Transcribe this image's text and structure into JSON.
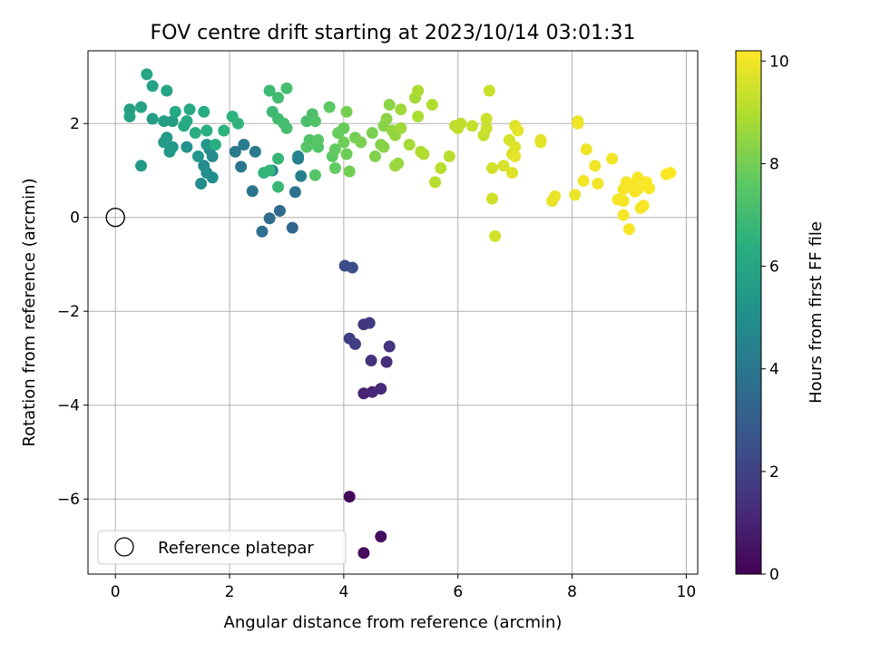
{
  "chart_data": {
    "type": "scatter",
    "title": "FOV centre drift starting at 2023/10/14 03:01:31",
    "xlabel": "Angular distance from reference (arcmin)",
    "ylabel": "Rotation from reference (arcmin)",
    "xlim": [
      -0.48,
      10.2
    ],
    "ylim": [
      -7.6,
      3.55
    ],
    "x_ticks": [
      0,
      2,
      4,
      6,
      8,
      10
    ],
    "y_ticks": [
      -6,
      -4,
      -2,
      0,
      2
    ],
    "grid": true,
    "legend": {
      "position": "bottom-left",
      "entries": [
        "Reference platepar"
      ]
    },
    "reference_point": {
      "x": 0,
      "y": 0,
      "label": "Reference platepar"
    },
    "colorbar": {
      "label": "Hours from first FF file",
      "colormap": "viridis",
      "range": [
        0,
        10.2
      ],
      "ticks": [
        0,
        2,
        4,
        6,
        8,
        10
      ]
    },
    "points": [
      [
        4.1,
        -5.95,
        0.2
      ],
      [
        4.35,
        -7.15,
        0.3
      ],
      [
        4.65,
        -6.8,
        0.4
      ],
      [
        4.35,
        -3.75,
        1.0
      ],
      [
        4.5,
        -3.72,
        1.1
      ],
      [
        4.65,
        -3.65,
        1.2
      ],
      [
        4.75,
        -3.08,
        1.3
      ],
      [
        4.48,
        -3.05,
        1.4
      ],
      [
        4.8,
        -2.75,
        1.5
      ],
      [
        4.35,
        -2.28,
        1.6
      ],
      [
        4.45,
        -2.25,
        1.7
      ],
      [
        4.2,
        -2.7,
        1.8
      ],
      [
        4.1,
        -2.58,
        1.9
      ],
      [
        4.02,
        -1.03,
        2.3
      ],
      [
        4.15,
        -1.07,
        2.4
      ],
      [
        3.1,
        -0.22,
        3.3
      ],
      [
        2.88,
        0.14,
        3.5
      ],
      [
        2.7,
        -0.02,
        3.6
      ],
      [
        2.57,
        -0.3,
        3.7
      ],
      [
        3.15,
        0.54,
        3.8
      ],
      [
        2.4,
        0.56,
        3.9
      ],
      [
        2.2,
        1.08,
        4.0
      ],
      [
        2.1,
        1.4,
        4.1
      ],
      [
        2.25,
        1.55,
        4.2
      ],
      [
        2.45,
        1.4,
        4.2
      ],
      [
        3.2,
        1.25,
        4.3
      ],
      [
        3.25,
        0.88,
        4.4
      ],
      [
        2.75,
        1.0,
        4.5
      ],
      [
        3.2,
        1.3,
        4.5
      ],
      [
        1.65,
        1.45,
        4.7
      ],
      [
        1.7,
        1.3,
        4.8
      ],
      [
        1.55,
        1.1,
        4.8
      ],
      [
        1.5,
        0.72,
        4.9
      ],
      [
        1.7,
        0.85,
        5.0
      ],
      [
        1.6,
        0.95,
        5.0
      ],
      [
        1.25,
        1.5,
        5.2
      ],
      [
        1.45,
        1.3,
        5.3
      ],
      [
        1.6,
        1.55,
        5.3
      ],
      [
        0.95,
        1.4,
        5.4
      ],
      [
        1.0,
        1.5,
        5.4
      ],
      [
        0.45,
        1.1,
        5.5
      ],
      [
        0.85,
        1.6,
        5.5
      ],
      [
        0.9,
        1.7,
        5.6
      ],
      [
        0.65,
        2.1,
        5.6
      ],
      [
        0.85,
        2.05,
        5.7
      ],
      [
        1.0,
        2.05,
        5.7
      ],
      [
        0.25,
        2.3,
        5.8
      ],
      [
        0.25,
        2.15,
        5.8
      ],
      [
        0.45,
        2.35,
        5.9
      ],
      [
        0.65,
        2.8,
        5.9
      ],
      [
        0.55,
        3.05,
        6.0
      ],
      [
        0.9,
        2.7,
        6.0
      ],
      [
        1.05,
        2.25,
        6.1
      ],
      [
        1.2,
        1.95,
        6.1
      ],
      [
        1.25,
        2.05,
        6.2
      ],
      [
        1.3,
        2.3,
        6.2
      ],
      [
        1.4,
        1.8,
        6.3
      ],
      [
        1.55,
        2.25,
        6.3
      ],
      [
        1.6,
        1.85,
        6.4
      ],
      [
        1.75,
        1.55,
        6.4
      ],
      [
        1.9,
        1.85,
        6.5
      ],
      [
        2.05,
        2.15,
        6.5
      ],
      [
        2.15,
        2.0,
        6.6
      ],
      [
        2.6,
        0.95,
        6.6
      ],
      [
        2.7,
        1.0,
        6.7
      ],
      [
        2.85,
        1.25,
        6.7
      ],
      [
        2.85,
        0.65,
        6.8
      ],
      [
        2.7,
        2.7,
        6.9
      ],
      [
        2.75,
        2.25,
        6.9
      ],
      [
        2.85,
        2.55,
        7.0
      ],
      [
        2.85,
        2.1,
        7.0
      ],
      [
        2.95,
        2.0,
        7.1
      ],
      [
        3.0,
        1.9,
        7.1
      ],
      [
        3.0,
        2.75,
        7.1
      ],
      [
        3.35,
        2.05,
        7.2
      ],
      [
        3.45,
        2.2,
        7.2
      ],
      [
        3.5,
        2.05,
        7.3
      ],
      [
        3.4,
        1.65,
        7.3
      ],
      [
        3.55,
        1.5,
        7.4
      ],
      [
        3.5,
        0.9,
        7.4
      ],
      [
        3.35,
        1.5,
        7.5
      ],
      [
        3.55,
        1.65,
        7.5
      ],
      [
        3.75,
        2.35,
        7.6
      ],
      [
        3.8,
        1.3,
        7.6
      ],
      [
        3.85,
        1.45,
        7.7
      ],
      [
        3.85,
        1.05,
        7.7
      ],
      [
        3.9,
        1.8,
        7.8
      ],
      [
        4.0,
        1.9,
        7.8
      ],
      [
        4.0,
        1.6,
        7.9
      ],
      [
        4.05,
        1.35,
        7.9
      ],
      [
        4.1,
        0.98,
        8.0
      ],
      [
        4.05,
        2.25,
        8.0
      ],
      [
        4.2,
        1.7,
        8.0
      ],
      [
        4.3,
        1.6,
        8.1
      ],
      [
        4.5,
        1.8,
        8.1
      ],
      [
        4.55,
        1.3,
        8.2
      ],
      [
        4.65,
        1.55,
        8.2
      ],
      [
        4.7,
        1.5,
        8.3
      ],
      [
        4.7,
        1.95,
        8.3
      ],
      [
        4.75,
        2.1,
        8.4
      ],
      [
        4.8,
        2.4,
        8.4
      ],
      [
        4.85,
        1.85,
        8.5
      ],
      [
        4.9,
        1.75,
        8.5
      ],
      [
        4.9,
        1.1,
        8.6
      ],
      [
        4.95,
        1.15,
        8.6
      ],
      [
        5.0,
        1.9,
        8.7
      ],
      [
        5.0,
        2.3,
        8.7
      ],
      [
        5.15,
        1.55,
        8.8
      ],
      [
        5.25,
        2.55,
        8.8
      ],
      [
        5.3,
        2.7,
        8.9
      ],
      [
        5.3,
        2.15,
        8.9
      ],
      [
        5.35,
        1.4,
        9.0
      ],
      [
        5.4,
        1.35,
        9.0
      ],
      [
        5.55,
        2.4,
        9.0
      ],
      [
        5.6,
        0.75,
        9.1
      ],
      [
        5.7,
        1.05,
        9.1
      ],
      [
        5.85,
        1.3,
        9.1
      ],
      [
        5.95,
        1.95,
        9.2
      ],
      [
        6.0,
        1.9,
        9.2
      ],
      [
        6.05,
        2.0,
        9.2
      ],
      [
        6.25,
        1.95,
        9.3
      ],
      [
        6.45,
        1.75,
        9.3
      ],
      [
        6.5,
        2.1,
        9.4
      ],
      [
        6.5,
        1.9,
        9.4
      ],
      [
        6.55,
        2.7,
        9.4
      ],
      [
        6.6,
        1.05,
        9.5
      ],
      [
        6.6,
        0.4,
        9.5
      ],
      [
        6.65,
        -0.4,
        9.5
      ],
      [
        6.8,
        1.1,
        9.6
      ],
      [
        6.9,
        1.65,
        9.6
      ],
      [
        6.95,
        1.35,
        9.6
      ],
      [
        6.95,
        0.95,
        9.7
      ],
      [
        7.0,
        1.95,
        9.7
      ],
      [
        7.0,
        1.5,
        9.7
      ],
      [
        7.0,
        1.3,
        9.8
      ],
      [
        7.05,
        1.85,
        9.8
      ],
      [
        7.45,
        1.6,
        9.8
      ],
      [
        7.45,
        1.65,
        9.8
      ],
      [
        7.65,
        0.35,
        9.9
      ],
      [
        7.7,
        0.45,
        9.9
      ],
      [
        8.05,
        0.48,
        9.9
      ],
      [
        8.1,
        2.05,
        9.9
      ],
      [
        8.1,
        2.0,
        10.0
      ],
      [
        8.25,
        1.45,
        10.0
      ],
      [
        8.2,
        0.78,
        10.0
      ],
      [
        8.4,
        1.1,
        10.0
      ],
      [
        8.45,
        0.72,
        10.0
      ],
      [
        8.7,
        1.25,
        10.0
      ],
      [
        8.8,
        0.38,
        10.05
      ],
      [
        8.9,
        0.05,
        10.05
      ],
      [
        8.9,
        0.35,
        10.05
      ],
      [
        8.9,
        0.6,
        10.05
      ],
      [
        8.95,
        0.75,
        10.05
      ],
      [
        9.05,
        0.7,
        10.1
      ],
      [
        9.0,
        -0.25,
        10.1
      ],
      [
        9.1,
        0.55,
        10.1
      ],
      [
        9.15,
        0.85,
        10.1
      ],
      [
        9.15,
        0.6,
        10.1
      ],
      [
        9.2,
        0.2,
        10.1
      ],
      [
        9.25,
        0.25,
        10.1
      ],
      [
        9.3,
        0.75,
        10.15
      ],
      [
        9.35,
        0.62,
        10.15
      ],
      [
        9.65,
        0.92,
        10.15
      ],
      [
        9.72,
        0.95,
        10.2
      ]
    ]
  }
}
